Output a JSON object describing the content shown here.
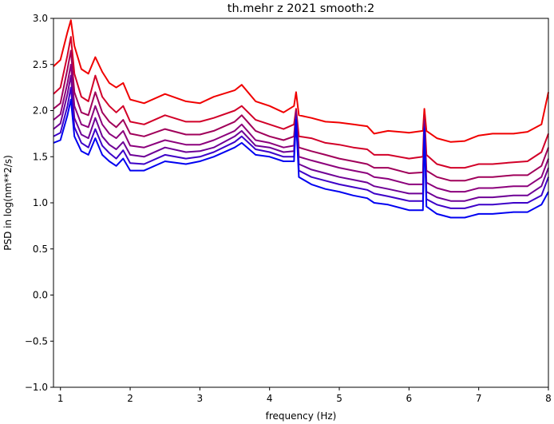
{
  "chart_data": {
    "type": "line",
    "title": "th.mehr z 2021 smooth:2",
    "xlabel": "frequency (Hz)",
    "ylabel": "PSD in log(nm**2/s)",
    "xlim": [
      0.9,
      8.0
    ],
    "ylim": [
      -1.0,
      3.0
    ],
    "xticks": [
      1,
      2,
      3,
      4,
      5,
      6,
      7,
      8
    ],
    "xtick_labels": [
      "1",
      "2",
      "3",
      "4",
      "5",
      "6",
      "7",
      "8"
    ],
    "yticks": [
      -1.0,
      -0.5,
      0.0,
      0.5,
      1.0,
      1.5,
      2.0,
      2.5,
      3.0
    ],
    "ytick_labels": [
      "−1.0",
      "−0.5",
      "0.0",
      "0.5",
      "1.0",
      "1.5",
      "2.0",
      "2.5",
      "3.0"
    ],
    "grid": false,
    "legend": false,
    "x": [
      0.9,
      1.0,
      1.1,
      1.15,
      1.2,
      1.3,
      1.4,
      1.5,
      1.6,
      1.7,
      1.8,
      1.9,
      2.0,
      2.2,
      2.5,
      2.8,
      3.0,
      3.2,
      3.5,
      3.6,
      3.8,
      4.0,
      4.2,
      4.35,
      4.38,
      4.42,
      4.6,
      4.8,
      5.0,
      5.2,
      5.4,
      5.5,
      5.7,
      6.0,
      6.2,
      6.22,
      6.25,
      6.4,
      6.6,
      6.8,
      6.9,
      7.0,
      7.2,
      7.5,
      7.7,
      7.9,
      8.0
    ],
    "series": [
      {
        "color": "#f00000",
        "values": [
          2.48,
          2.55,
          2.85,
          2.98,
          2.7,
          2.45,
          2.4,
          2.58,
          2.42,
          2.3,
          2.25,
          2.3,
          2.12,
          2.08,
          2.18,
          2.1,
          2.08,
          2.15,
          2.22,
          2.28,
          2.1,
          2.05,
          1.98,
          2.05,
          2.2,
          1.95,
          1.92,
          1.88,
          1.87,
          1.85,
          1.83,
          1.75,
          1.78,
          1.76,
          1.78,
          2.02,
          1.78,
          1.7,
          1.66,
          1.67,
          1.7,
          1.73,
          1.75,
          1.75,
          1.77,
          1.85,
          2.2
        ]
      },
      {
        "color": "#d20028",
        "values": [
          2.18,
          2.25,
          2.6,
          2.8,
          2.4,
          2.15,
          2.1,
          2.38,
          2.15,
          2.05,
          1.98,
          2.05,
          1.88,
          1.85,
          1.95,
          1.88,
          1.88,
          1.92,
          2.0,
          2.05,
          1.9,
          1.85,
          1.8,
          1.85,
          2.02,
          1.72,
          1.7,
          1.65,
          1.63,
          1.6,
          1.58,
          1.52,
          1.52,
          1.48,
          1.5,
          1.95,
          1.52,
          1.42,
          1.38,
          1.38,
          1.4,
          1.42,
          1.42,
          1.44,
          1.45,
          1.55,
          1.75
        ]
      },
      {
        "color": "#a0005a",
        "values": [
          2.02,
          2.08,
          2.45,
          2.65,
          2.2,
          1.98,
          1.95,
          2.2,
          1.98,
          1.88,
          1.82,
          1.9,
          1.75,
          1.72,
          1.8,
          1.74,
          1.74,
          1.78,
          1.88,
          1.95,
          1.78,
          1.72,
          1.68,
          1.72,
          2.0,
          1.6,
          1.56,
          1.52,
          1.48,
          1.45,
          1.42,
          1.38,
          1.38,
          1.32,
          1.33,
          1.9,
          1.35,
          1.28,
          1.24,
          1.24,
          1.26,
          1.28,
          1.28,
          1.3,
          1.3,
          1.4,
          1.6
        ]
      },
      {
        "color": "#8c007c",
        "values": [
          1.9,
          1.96,
          2.3,
          2.5,
          2.05,
          1.85,
          1.82,
          2.05,
          1.85,
          1.75,
          1.7,
          1.78,
          1.62,
          1.6,
          1.68,
          1.63,
          1.63,
          1.68,
          1.78,
          1.85,
          1.68,
          1.65,
          1.6,
          1.62,
          1.98,
          1.5,
          1.46,
          1.42,
          1.38,
          1.35,
          1.32,
          1.28,
          1.26,
          1.2,
          1.2,
          1.88,
          1.22,
          1.16,
          1.12,
          1.12,
          1.14,
          1.16,
          1.16,
          1.18,
          1.18,
          1.28,
          1.48
        ]
      },
      {
        "color": "#6e0096",
        "values": [
          1.8,
          1.86,
          2.18,
          2.38,
          1.92,
          1.74,
          1.7,
          1.92,
          1.72,
          1.63,
          1.58,
          1.66,
          1.52,
          1.5,
          1.6,
          1.55,
          1.56,
          1.6,
          1.72,
          1.78,
          1.62,
          1.6,
          1.55,
          1.56,
          1.95,
          1.42,
          1.36,
          1.32,
          1.28,
          1.25,
          1.22,
          1.18,
          1.15,
          1.1,
          1.1,
          1.85,
          1.12,
          1.06,
          1.02,
          1.02,
          1.04,
          1.06,
          1.06,
          1.08,
          1.08,
          1.18,
          1.38
        ]
      },
      {
        "color": "#3c00c8",
        "values": [
          1.72,
          1.76,
          2.05,
          2.25,
          1.82,
          1.65,
          1.6,
          1.8,
          1.62,
          1.54,
          1.48,
          1.57,
          1.43,
          1.42,
          1.52,
          1.48,
          1.5,
          1.55,
          1.66,
          1.72,
          1.58,
          1.55,
          1.5,
          1.5,
          1.93,
          1.35,
          1.28,
          1.24,
          1.2,
          1.17,
          1.14,
          1.1,
          1.07,
          1.02,
          1.02,
          1.82,
          1.04,
          0.98,
          0.94,
          0.94,
          0.96,
          0.98,
          0.98,
          1.0,
          1.0,
          1.08,
          1.28
        ]
      },
      {
        "color": "#0000f0",
        "values": [
          1.65,
          1.68,
          1.95,
          2.12,
          1.72,
          1.56,
          1.52,
          1.7,
          1.52,
          1.45,
          1.4,
          1.48,
          1.35,
          1.35,
          1.45,
          1.42,
          1.45,
          1.5,
          1.6,
          1.65,
          1.52,
          1.5,
          1.45,
          1.45,
          1.9,
          1.28,
          1.2,
          1.15,
          1.12,
          1.08,
          1.05,
          1.0,
          0.98,
          0.92,
          0.92,
          1.8,
          0.96,
          0.88,
          0.84,
          0.84,
          0.86,
          0.88,
          0.88,
          0.9,
          0.9,
          0.98,
          1.12
        ]
      }
    ]
  }
}
